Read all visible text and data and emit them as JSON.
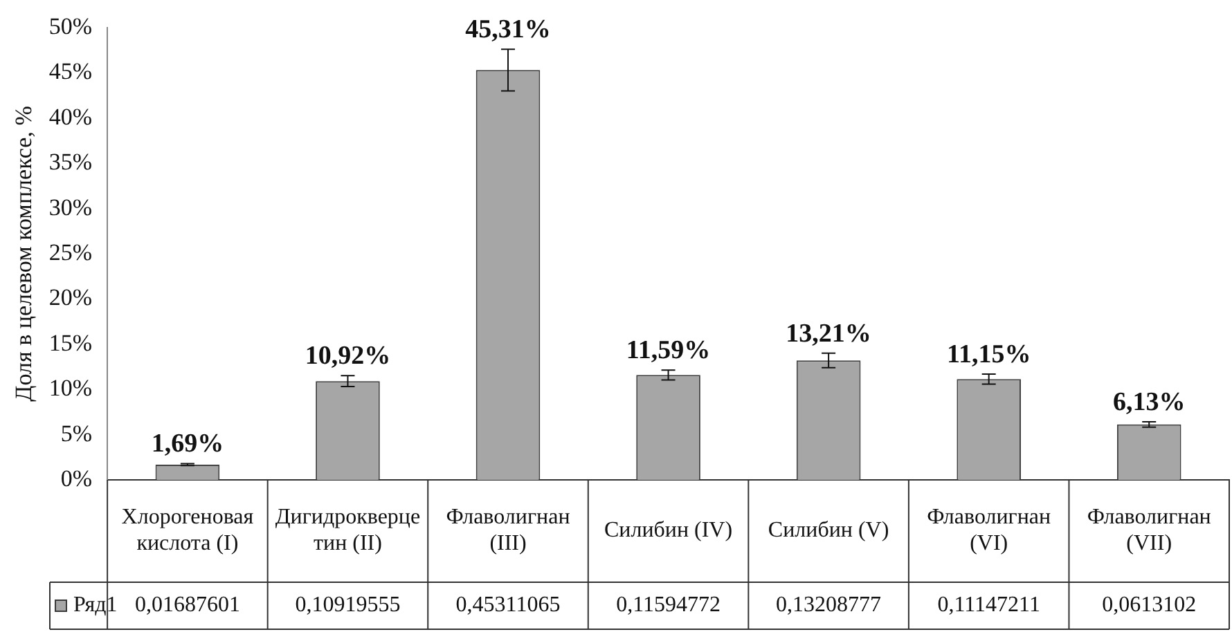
{
  "chart_data": {
    "type": "bar",
    "ylabel": "Доля в целевом комплексе, %",
    "categories": [
      "Хлорогеновая кислота (I)",
      "Дигидрокверцетин (II)",
      "Флаволигнан (III)",
      "Силибин (IV)",
      "Силибин (V)",
      "Флаволигнан (VI)",
      "Флаволигнан (VII)"
    ],
    "series": [
      {
        "name": "Ряд1",
        "color": "#a6a6a6",
        "values": [
          0.01687601,
          0.10919555,
          0.45311065,
          0.11594772,
          0.13208777,
          0.11147211,
          0.0613102
        ],
        "errors": [
          0.001,
          0.006,
          0.023,
          0.0055,
          0.008,
          0.0055,
          0.003
        ],
        "value_labels": [
          "0,01687601",
          "0,10919555",
          "0,45311065",
          "0,11594772",
          "0,13208777",
          "0,11147211",
          "0,0613102"
        ]
      }
    ],
    "ylim": [
      0,
      0.5
    ],
    "yticks": [
      {
        "value": 0,
        "label": "0%"
      },
      {
        "value": 0.05,
        "label": "5%"
      },
      {
        "value": 0.1,
        "label": "10%"
      },
      {
        "value": 0.15,
        "label": "15%"
      },
      {
        "value": 0.2,
        "label": "20%"
      },
      {
        "value": 0.25,
        "label": "25%"
      },
      {
        "value": 0.3,
        "label": "30%"
      },
      {
        "value": 0.35,
        "label": "35%"
      },
      {
        "value": 0.4,
        "label": "40%"
      },
      {
        "value": 0.45,
        "label": "45%"
      },
      {
        "value": 0.5,
        "label": "50%"
      }
    ],
    "annotations": [
      {
        "text": "1,69%",
        "x": "Хлорогеновая кислота (I)",
        "y": 0.01687601
      },
      {
        "text": "10,92%",
        "x": "Дигидрокверцетин (II)",
        "y": 0.10919555
      },
      {
        "text": "45,31%",
        "x": "Флаволигнан (III)",
        "y": 0.45311065
      },
      {
        "text": "11,59%",
        "x": "Силибин (IV)",
        "y": 0.11594772
      },
      {
        "text": "13,21%",
        "x": "Силибин (V)",
        "y": 0.13208777
      },
      {
        "text": "11,15%",
        "x": "Флаволигнан (VI)",
        "y": 0.11147211
      },
      {
        "text": "6,13%",
        "x": "Флаволигнан (VII)",
        "y": 0.0613102
      }
    ],
    "legend": "bottom",
    "grid": false
  }
}
